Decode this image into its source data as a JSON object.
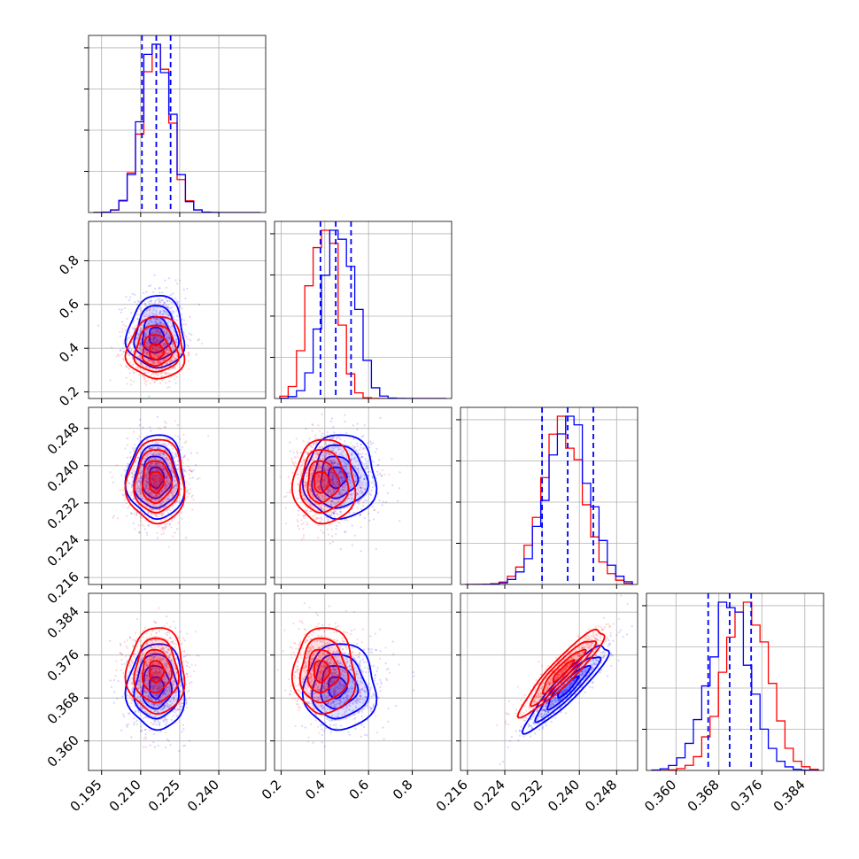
{
  "chart_data": {
    "type": "corner",
    "title": "",
    "grid": true,
    "series": [
      {
        "name": "",
        "color": "#0000ff",
        "means": [
          0.216,
          0.45,
          0.2375,
          0.37
        ],
        "sds": [
          0.0055,
          0.07,
          0.0045,
          0.004
        ],
        "quantiles": [
          [
            0.2105,
            0.216,
            0.2215
          ],
          [
            0.38,
            0.45,
            0.52
          ],
          [
            0.232,
            0.2375,
            0.243
          ],
          [
            0.366,
            0.37,
            0.374
          ]
        ],
        "corr_3_4": 0.92
      },
      {
        "name": "",
        "color": "#ff0000",
        "means": [
          0.216,
          0.38,
          0.2365,
          0.373
        ],
        "sds": [
          0.0055,
          0.06,
          0.0045,
          0.004
        ],
        "corr_3_4": 0.92
      }
    ],
    "params": [
      {
        "range": [
          0.19,
          0.258
        ],
        "ticks": [
          "0.195",
          "0.210",
          "0.225",
          "0.240"
        ],
        "tick_values": [
          0.195,
          0.21,
          0.225,
          0.24
        ]
      },
      {
        "range": [
          0.17,
          0.98
        ],
        "ticks": [
          "0.2",
          "0.4",
          "0.6",
          "0.8"
        ],
        "tick_values": [
          0.2,
          0.4,
          0.6,
          0.8
        ]
      },
      {
        "range": [
          0.2145,
          0.2525
        ],
        "ticks": [
          "0.216",
          "0.224",
          "0.232",
          "0.240",
          "0.248"
        ],
        "tick_values": [
          0.216,
          0.224,
          0.232,
          0.24,
          0.248
        ]
      },
      {
        "range": [
          0.3545,
          0.3875
        ],
        "ticks": [
          "0.360",
          "0.368",
          "0.376",
          "0.384"
        ],
        "tick_values": [
          0.36,
          0.368,
          0.376,
          0.384
        ]
      }
    ]
  }
}
